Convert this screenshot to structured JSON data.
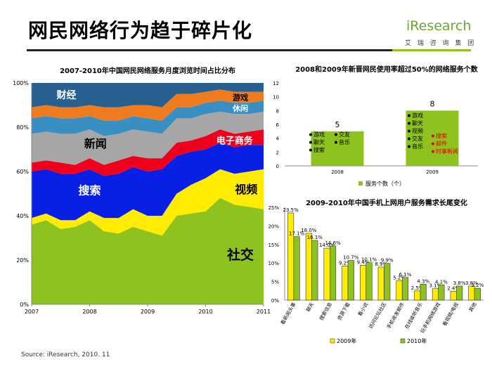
{
  "header": {
    "title": "网民网络行为趋于碎片化",
    "logo_main": "iResearch",
    "logo_sub": "艾 瑞 咨 询 集 团"
  },
  "source": "Source: iResearch, 2010. 11",
  "colors": {
    "social": "#8dc21f",
    "video": "#ffec00",
    "search": "#0a1fe6",
    "ecommerce": "#f0001c",
    "news": "#a6a6a6",
    "leisure": "#3a8fc2",
    "game": "#f07b1e",
    "finance": "#275f8e",
    "y2009": "#ffec00",
    "y2010": "#8dc21f"
  },
  "chart_data": [
    {
      "type": "area",
      "title": "2007-2010年中国网民网络服务月度浏览时间占比分布",
      "x_ticks": [
        "2007",
        "2008",
        "2009",
        "2010",
        "2011"
      ],
      "y_ticks": [
        "0%",
        "20%",
        "40%",
        "60%",
        "80%",
        "100%"
      ],
      "ylim": [
        0,
        100
      ],
      "x": [
        2007.0,
        2007.25,
        2007.5,
        2007.75,
        2008.0,
        2008.25,
        2008.5,
        2008.75,
        2009.0,
        2009.25,
        2009.5,
        2009.75,
        2010.0,
        2010.25,
        2010.5,
        2010.75,
        2011.0
      ],
      "series": [
        {
          "name": "社交",
          "label": "社交",
          "values": [
            36,
            38,
            34,
            35,
            38,
            33,
            32,
            35,
            33,
            31,
            40,
            41,
            42,
            48,
            45,
            44,
            43
          ]
        },
        {
          "name": "视频",
          "label": "视频",
          "values": [
            3,
            3,
            4,
            3,
            4,
            6,
            7,
            8,
            7,
            9,
            10,
            13,
            15,
            13,
            14,
            16,
            18
          ]
        },
        {
          "name": "搜索",
          "label": "搜索",
          "values": [
            21,
            20,
            21,
            21,
            19,
            19,
            20,
            19,
            20,
            21,
            17,
            15,
            13,
            12,
            12,
            12,
            11
          ]
        },
        {
          "name": "电子商务",
          "label": "电子商务",
          "values": [
            4,
            4,
            5,
            4,
            5,
            5,
            6,
            5,
            6,
            5,
            6,
            5,
            6,
            6,
            6,
            6,
            7
          ]
        },
        {
          "name": "新闻",
          "label": "新闻",
          "values": [
            13,
            13,
            13,
            14,
            13,
            13,
            12,
            12,
            12,
            11,
            11,
            10,
            10,
            8,
            9,
            8,
            8
          ]
        },
        {
          "name": "休闲",
          "label": "休闲",
          "values": [
            7,
            7,
            7,
            7,
            6,
            7,
            6,
            6,
            6,
            6,
            5,
            5,
            5,
            5,
            5,
            5,
            5
          ]
        },
        {
          "name": "游戏",
          "label": "游戏",
          "values": [
            5,
            5,
            5,
            5,
            5,
            6,
            6,
            5,
            6,
            6,
            6,
            6,
            5,
            5,
            5,
            5,
            4
          ]
        },
        {
          "name": "财经",
          "label": "财经",
          "values": [
            11,
            10,
            11,
            11,
            10,
            11,
            11,
            10,
            10,
            11,
            5,
            5,
            4,
            3,
            4,
            4,
            4
          ]
        }
      ]
    },
    {
      "type": "bar",
      "title": "2008和2009年新晋网民使用率超过50%的网络服务个数",
      "categories": [
        "2008",
        "2009"
      ],
      "values": [
        5,
        8
      ],
      "ylim": [
        0,
        12
      ],
      "y_ticks": [
        "0",
        "2",
        "4",
        "6",
        "8",
        "10",
        "12"
      ],
      "legend": "服务个数（个）",
      "services_2008": [
        "游戏",
        "交友",
        "聊天",
        "音乐",
        "搜索"
      ],
      "services_2009": [
        "游戏",
        "聊天",
        "视频",
        "交友",
        "音乐",
        "搜索",
        "邮件",
        "时事新闻"
      ]
    },
    {
      "type": "bar",
      "title": "2009-2010年中国手机上网用户服务需求长尾变化",
      "categories": [
        "看新闻头事",
        "聊天",
        "搜索信息",
        "资源下载",
        "看小说",
        "访问论坛社区",
        "手机收发邮件",
        "在线收听音乐",
        "玩手机网络游戏",
        "看视频/电视",
        "其他"
      ],
      "series": [
        {
          "name": "2009年",
          "values": [
            23.5,
            18.0,
            14.0,
            9.2,
            9.4,
            8.9,
            5.2,
            2.5,
            3.1,
            2.4,
            3.8
          ]
        },
        {
          "name": "2010年",
          "values": [
            17.1,
            16.1,
            14.6,
            10.7,
            10.1,
            9.9,
            6.1,
            4.3,
            4.1,
            3.8,
            3.2
          ]
        }
      ],
      "labels_2009": [
        "23.5%",
        "18.0%",
        "14.0%",
        "9.2%",
        "9.4%",
        "8.9%",
        "5.2%",
        "2.5%",
        "3.1%",
        "2.4%",
        "3.8%"
      ],
      "labels_2010": [
        "17.1%",
        "16.1%",
        "14.6%",
        "10.7%",
        "10.1%",
        "9.9%",
        "6.1%",
        "4.3%",
        "4.1%",
        "3.8%",
        "3.2%"
      ],
      "ylim": [
        0,
        25
      ],
      "y_ticks": [
        "0%",
        "5%",
        "10%",
        "15%",
        "20%",
        "25%"
      ],
      "legend": [
        "2009年",
        "2010年"
      ]
    }
  ]
}
